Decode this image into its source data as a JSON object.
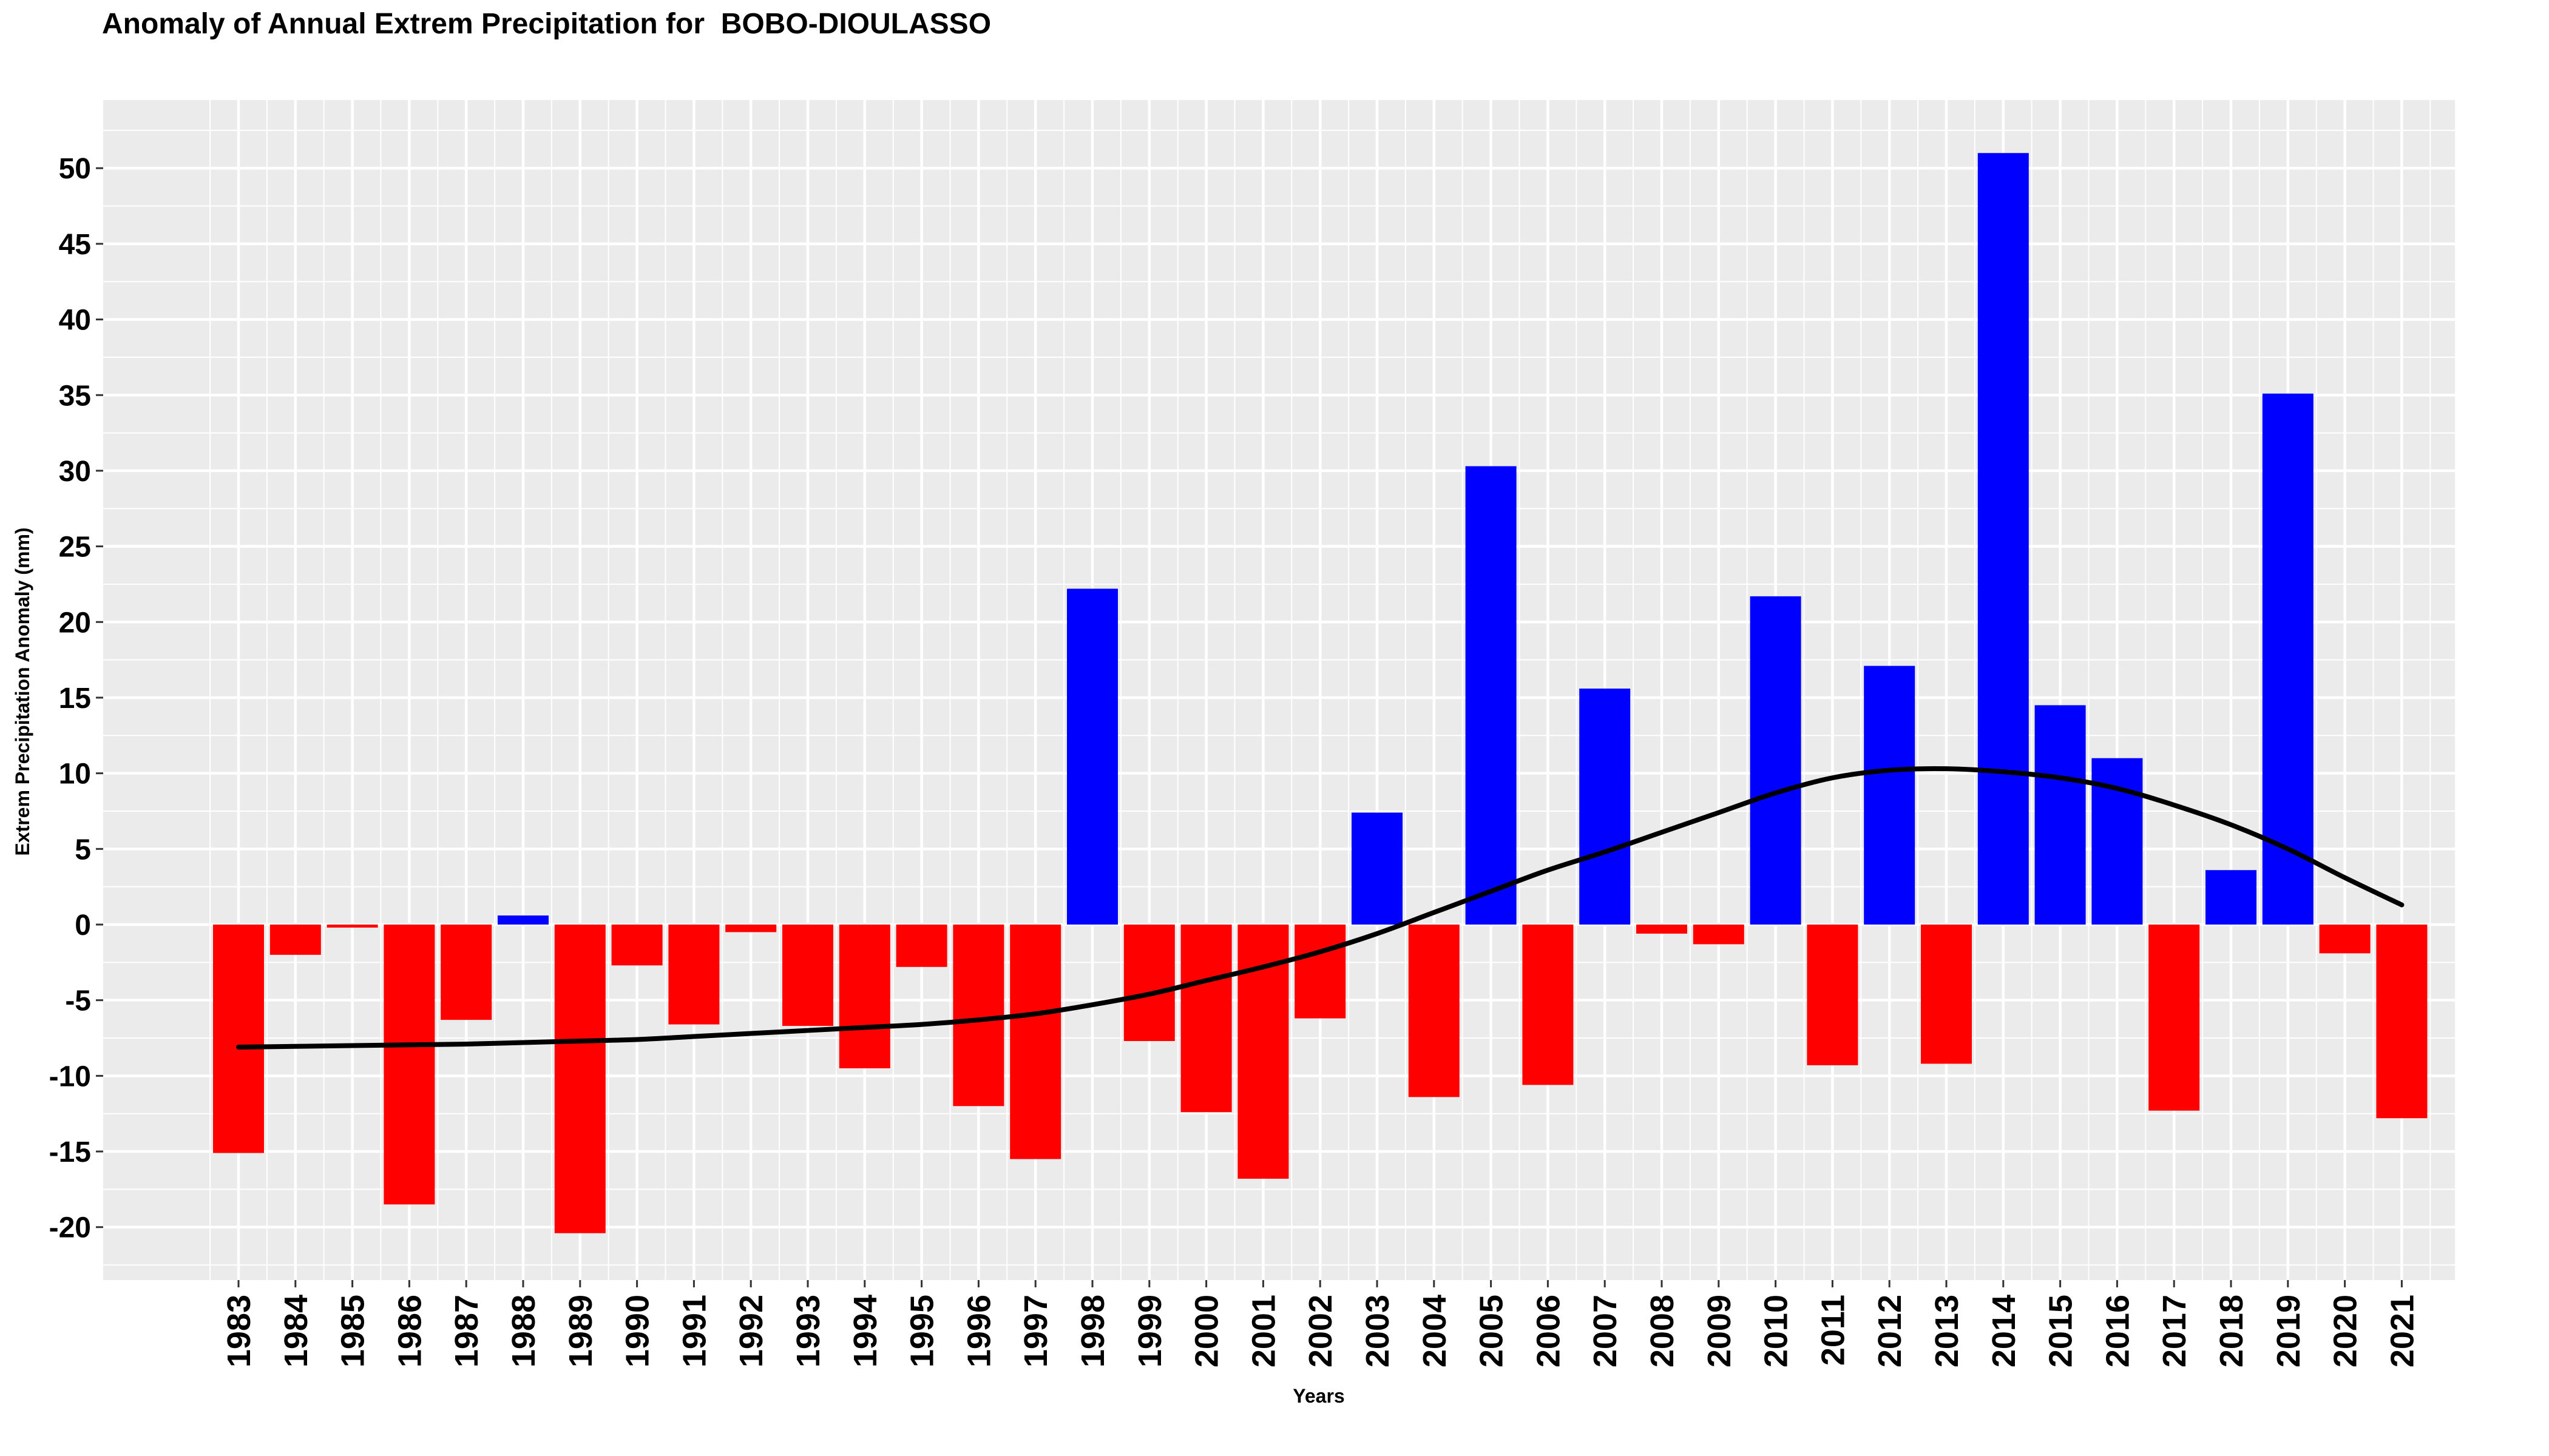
{
  "chart_data": {
    "type": "bar",
    "title": "Anomaly of Annual Extrem Precipitation for  BOBO-DIOULASSO",
    "xlabel": "Years",
    "ylabel": "Extrem Precipitation Anomaly (mm)",
    "ylim": [
      -23.5,
      54.5
    ],
    "yticks": [
      -20,
      -15,
      -10,
      -5,
      0,
      5,
      10,
      15,
      20,
      25,
      30,
      35,
      40,
      45,
      50
    ],
    "grid": true,
    "colors": {
      "positive": "#0000ff",
      "negative": "#ff0000",
      "trend": "#000000",
      "panel": "#ebebeb",
      "grid": "#ffffff"
    },
    "categories": [
      "1983",
      "1984",
      "1985",
      "1986",
      "1987",
      "1988",
      "1989",
      "1990",
      "1991",
      "1992",
      "1993",
      "1994",
      "1995",
      "1996",
      "1997",
      "1998",
      "1999",
      "2000",
      "2001",
      "2002",
      "2003",
      "2004",
      "2005",
      "2006",
      "2007",
      "2008",
      "2009",
      "2010",
      "2011",
      "2012",
      "2013",
      "2014",
      "2015",
      "2016",
      "2017",
      "2018",
      "2019",
      "2020",
      "2021"
    ],
    "values": [
      -15.1,
      -2.0,
      -0.2,
      -18.5,
      -6.3,
      0.6,
      -20.4,
      -2.7,
      -6.6,
      -0.5,
      -6.7,
      -9.5,
      -2.8,
      -12.0,
      -15.5,
      22.2,
      -7.7,
      -12.4,
      -16.8,
      -6.2,
      7.4,
      -11.4,
      30.3,
      -10.6,
      15.6,
      -0.6,
      -1.3,
      21.7,
      -9.3,
      17.1,
      -9.2,
      51.0,
      14.5,
      11.0,
      -12.3,
      3.6,
      35.1,
      -1.9,
      -12.8
    ],
    "trend": [
      -8.1,
      -8.05,
      -8.0,
      -7.95,
      -7.9,
      -7.8,
      -7.7,
      -7.6,
      -7.4,
      -7.2,
      -7.0,
      -6.8,
      -6.6,
      -6.3,
      -5.9,
      -5.3,
      -4.6,
      -3.7,
      -2.8,
      -1.8,
      -0.6,
      0.8,
      2.2,
      3.6,
      4.8,
      6.1,
      7.4,
      8.7,
      9.7,
      10.2,
      10.3,
      10.1,
      9.7,
      9.0,
      7.9,
      6.6,
      5.0,
      3.1,
      1.3
    ]
  }
}
